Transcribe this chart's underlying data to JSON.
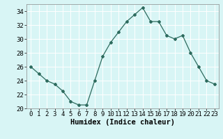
{
  "x": [
    0,
    1,
    2,
    3,
    4,
    5,
    6,
    7,
    8,
    9,
    10,
    11,
    12,
    13,
    14,
    15,
    16,
    17,
    18,
    19,
    20,
    21,
    22,
    23
  ],
  "y": [
    26,
    25,
    24,
    23.5,
    22.5,
    21,
    20.5,
    20.5,
    24,
    27.5,
    29.5,
    31,
    32.5,
    33.5,
    34.5,
    32.5,
    32.5,
    30.5,
    30,
    30.5,
    28,
    26,
    24,
    23.5
  ],
  "line_color": "#2e6b5e",
  "marker": "D",
  "marker_size": 2,
  "bg_color": "#d8f5f5",
  "grid_color": "#ffffff",
  "xlabel": "Humidex (Indice chaleur)",
  "xlim": [
    -0.5,
    23.5
  ],
  "ylim": [
    20,
    35
  ],
  "yticks": [
    20,
    22,
    24,
    26,
    28,
    30,
    32,
    34
  ],
  "xticks": [
    0,
    1,
    2,
    3,
    4,
    5,
    6,
    7,
    8,
    9,
    10,
    11,
    12,
    13,
    14,
    15,
    16,
    17,
    18,
    19,
    20,
    21,
    22,
    23
  ],
  "xlabel_fontsize": 7.5,
  "tick_fontsize": 6.5
}
